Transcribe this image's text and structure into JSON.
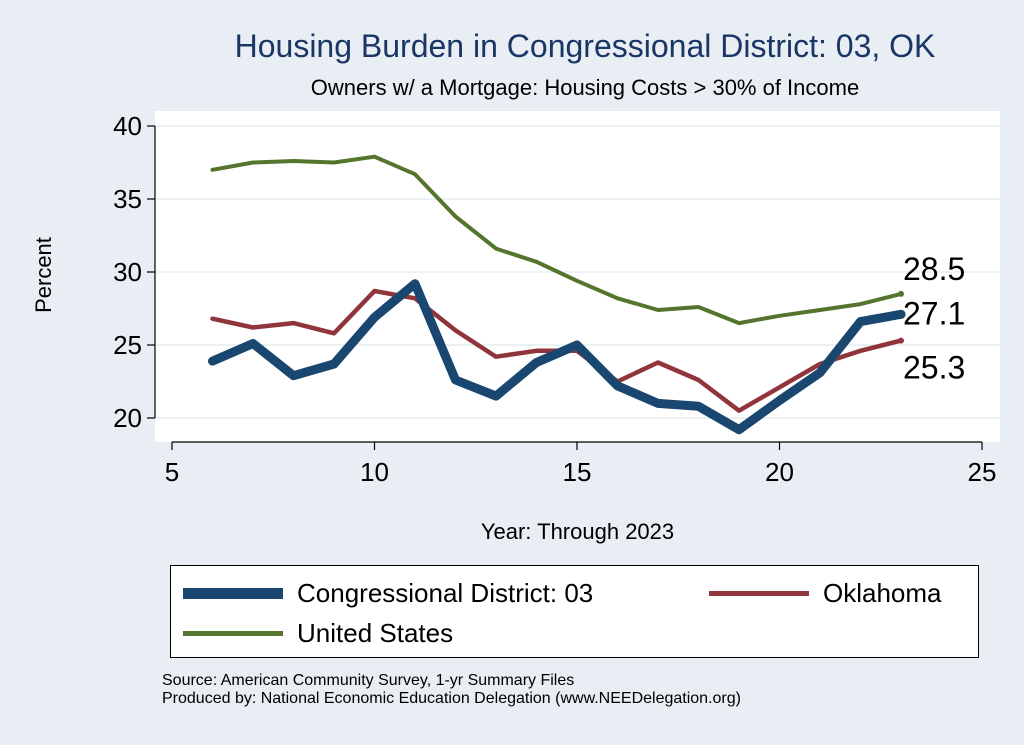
{
  "title": "Housing Burden in Congressional District:  03, OK",
  "subtitle": "Owners w/ a Mortgage: Housing Costs > 30% of Income",
  "chart_data": {
    "type": "line",
    "xlabel": "Year: Through 2023",
    "ylabel": "Percent",
    "xlim": [
      5,
      25
    ],
    "ylim": [
      19,
      41
    ],
    "xticks": [
      5,
      10,
      15,
      20,
      25
    ],
    "yticks": [
      20,
      25,
      30,
      35,
      40
    ],
    "grid": true,
    "legend_position": "bottom",
    "x": [
      6,
      7,
      8,
      9,
      10,
      11,
      12,
      13,
      14,
      15,
      16,
      17,
      18,
      19,
      20,
      21,
      22,
      23
    ],
    "series": [
      {
        "name": "Congressional District:  03",
        "color": "#1a476f",
        "values": [
          23.9,
          25.1,
          22.9,
          23.7,
          26.9,
          29.2,
          22.6,
          21.5,
          23.8,
          25.0,
          22.2,
          21.0,
          20.8,
          19.2,
          21.2,
          23.1,
          26.6,
          27.1
        ],
        "end_label": "27.1"
      },
      {
        "name": "Oklahoma",
        "color": "#90353b",
        "values": [
          26.8,
          26.2,
          26.5,
          25.8,
          28.7,
          28.2,
          26.0,
          24.2,
          24.6,
          24.6,
          22.5,
          23.8,
          22.6,
          20.5,
          22.1,
          23.7,
          24.6,
          25.3
        ],
        "end_label": "25.3"
      },
      {
        "name": "United States",
        "color": "#55752f",
        "values": [
          37.0,
          37.5,
          37.6,
          37.5,
          37.9,
          36.7,
          33.8,
          31.6,
          30.7,
          29.4,
          28.2,
          27.4,
          27.6,
          26.5,
          27.0,
          27.4,
          27.8,
          28.5
        ],
        "end_label": "28.5"
      }
    ]
  },
  "source_lines": [
    "Source: American Community Survey, 1-yr Summary Files",
    "Produced by: National Economic Education Delegation (www.NEEDelegation.org)"
  ]
}
